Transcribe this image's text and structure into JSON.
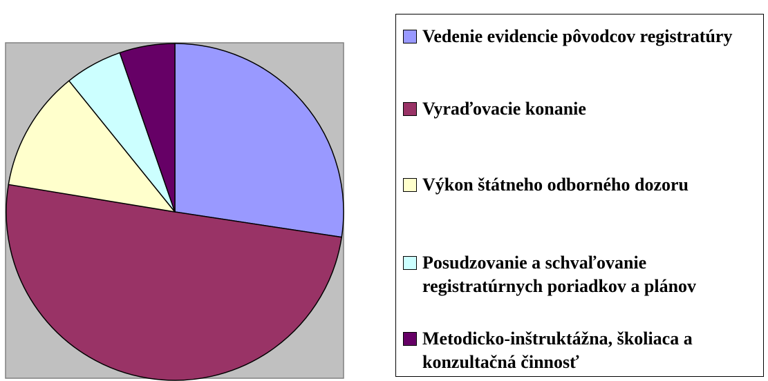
{
  "chart_data": {
    "type": "pie",
    "categories": [
      "Vedenie evidencie pôvodcov registratúry",
      "Vyraďovacie konanie",
      "Výkon štátneho odborného dozoru",
      "Posudzovanie a schvaľovanie registratúrnych poriadkov a plánov",
      "Metodicko-inštruktážna, školiaca a konzultačná činnosť"
    ],
    "values": [
      27.4,
      50.2,
      11.6,
      5.5,
      5.3
    ],
    "colors": [
      "#9999ff",
      "#993366",
      "#ffffcc",
      "#ccffff",
      "#660066"
    ],
    "legend": "right"
  }
}
